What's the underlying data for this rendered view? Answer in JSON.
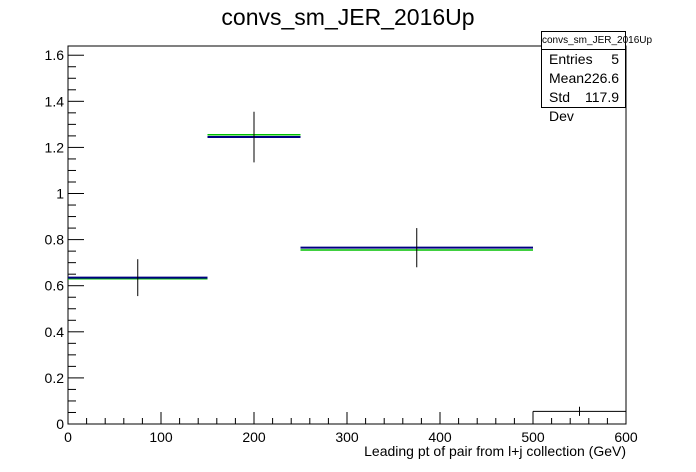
{
  "chart_data": {
    "type": "histogram",
    "title": "convs_sm_JER_2016Up",
    "xlabel": "Leading pt of pair from l+j collection (GeV)",
    "ylabel": "",
    "xlim": [
      0,
      600
    ],
    "ylim": [
      0,
      1.64
    ],
    "x_ticks": [
      0,
      100,
      200,
      300,
      400,
      500,
      600
    ],
    "y_ticks": [
      0,
      0.2,
      0.4,
      0.6,
      0.8,
      1,
      1.2,
      1.4,
      1.6
    ],
    "grid": false,
    "bins": [
      {
        "low": 0,
        "high": 150,
        "center": 75,
        "value": 0.635,
        "error": 0.08,
        "green": 0.63
      },
      {
        "low": 150,
        "high": 250,
        "center": 200,
        "value": 1.245,
        "error": 0.11,
        "green": 1.255
      },
      {
        "low": 250,
        "high": 500,
        "center": 375,
        "value": 0.765,
        "error": 0.085,
        "green": 0.755
      },
      {
        "low": 500,
        "high": 600,
        "center": 550,
        "value": 0.055,
        "error": 0.02,
        "green": null
      }
    ],
    "stats": {
      "name": "convs_sm_JER_2016Up",
      "rows": [
        {
          "label": "Entries",
          "value": "5"
        },
        {
          "label": "Mean",
          "value": "226.6"
        },
        {
          "label": "Std Dev",
          "value": "117.9"
        }
      ]
    },
    "colors": {
      "main": "#000080",
      "alt": "#00c000",
      "axis": "#000000"
    }
  }
}
